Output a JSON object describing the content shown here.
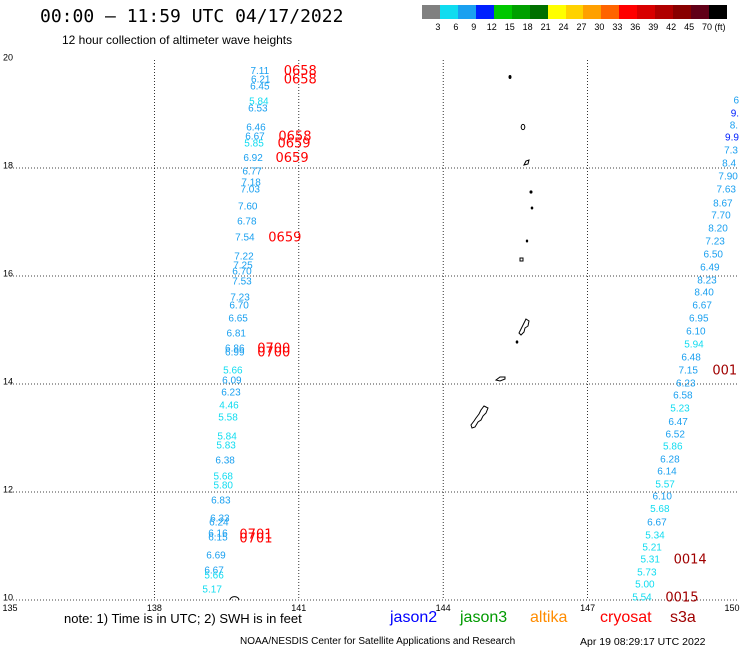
{
  "header": {
    "title": "00:00 – 11:59 UTC 04/17/2022",
    "subtitle": "12 hour collection of altimeter wave heights"
  },
  "legend": {
    "bins": [
      "#808080",
      "#10dcf0",
      "#1aa0f0",
      "#0020ff",
      "#00c800",
      "#00a000",
      "#007000",
      "#ffff00",
      "#ffd200",
      "#ffa000",
      "#ff6400",
      "#ff0000",
      "#d80000",
      "#b00000",
      "#880000",
      "#600018",
      "#000000"
    ],
    "labels": [
      "3",
      "6",
      "9",
      "12",
      "15",
      "18",
      "21",
      "24",
      "27",
      "30",
      "33",
      "36",
      "39",
      "42",
      "45",
      "70"
    ],
    "unit": "(ft)"
  },
  "map": {
    "lon_range": [
      135,
      150
    ],
    "lat_range": [
      10,
      20
    ],
    "grid": true,
    "x_ticks": [
      "135",
      "138",
      "141",
      "144",
      "147",
      "150"
    ],
    "y_ticks": [
      "20",
      "18",
      "16",
      "14",
      "12",
      "10"
    ],
    "observations": [
      {
        "value": "7.11",
        "lat": 19.81,
        "lon": 140.19
      },
      {
        "value": "6.21",
        "lat": 19.65,
        "lon": 140.21
      },
      {
        "value": "6.45",
        "lat": 19.52,
        "lon": 140.19
      },
      {
        "value": "5.84",
        "lat": 19.24,
        "lon": 140.17
      },
      {
        "value": "6.53",
        "lat": 19.11,
        "lon": 140.15
      },
      {
        "value": "6.46",
        "lat": 18.76,
        "lon": 140.11
      },
      {
        "value": "6.67",
        "lat": 18.59,
        "lon": 140.09
      },
      {
        "value": "5.85",
        "lat": 18.46,
        "lon": 140.07
      },
      {
        "value": "6.92",
        "lat": 18.19,
        "lon": 140.05
      },
      {
        "value": "6.77",
        "lat": 17.94,
        "lon": 140.03
      },
      {
        "value": "7.18",
        "lat": 17.74,
        "lon": 140.01
      },
      {
        "value": "7.03",
        "lat": 17.61,
        "lon": 139.99
      },
      {
        "value": "7.60",
        "lat": 17.3,
        "lon": 139.94
      },
      {
        "value": "6.78",
        "lat": 17.02,
        "lon": 139.92
      },
      {
        "value": "7.54",
        "lat": 16.72,
        "lon": 139.88
      },
      {
        "value": "7.22",
        "lat": 16.37,
        "lon": 139.86
      },
      {
        "value": "7.25",
        "lat": 16.2,
        "lon": 139.84
      },
      {
        "value": "6.70",
        "lat": 16.09,
        "lon": 139.82
      },
      {
        "value": "7.53",
        "lat": 15.91,
        "lon": 139.82
      },
      {
        "value": "7.23",
        "lat": 15.61,
        "lon": 139.78
      },
      {
        "value": "6.70",
        "lat": 15.46,
        "lon": 139.76
      },
      {
        "value": "6.65",
        "lat": 15.22,
        "lon": 139.74
      },
      {
        "value": "6.81",
        "lat": 14.94,
        "lon": 139.7
      },
      {
        "value": "6.86",
        "lat": 14.67,
        "lon": 139.67
      },
      {
        "value": "6.99",
        "lat": 14.59,
        "lon": 139.67
      },
      {
        "value": "5.66",
        "lat": 14.26,
        "lon": 139.63
      },
      {
        "value": "6.09",
        "lat": 14.07,
        "lon": 139.61
      },
      {
        "value": "6.23",
        "lat": 13.85,
        "lon": 139.59
      },
      {
        "value": "4.46",
        "lat": 13.61,
        "lon": 139.55
      },
      {
        "value": "5.58",
        "lat": 13.39,
        "lon": 139.53
      },
      {
        "value": "5.84",
        "lat": 13.04,
        "lon": 139.51
      },
      {
        "value": "5.83",
        "lat": 12.87,
        "lon": 139.49
      },
      {
        "value": "6.38",
        "lat": 12.59,
        "lon": 139.47
      },
      {
        "value": "5.68",
        "lat": 12.3,
        "lon": 139.43
      },
      {
        "value": "5.80",
        "lat": 12.13,
        "lon": 139.43
      },
      {
        "value": "6.83",
        "lat": 11.85,
        "lon": 139.38
      },
      {
        "value": "6.33",
        "lat": 11.52,
        "lon": 139.36
      },
      {
        "value": "6.24",
        "lat": 11.44,
        "lon": 139.34
      },
      {
        "value": "6.16",
        "lat": 11.24,
        "lon": 139.32
      },
      {
        "value": "6.15",
        "lat": 11.17,
        "lon": 139.32
      },
      {
        "value": "6.69",
        "lat": 10.83,
        "lon": 139.28
      },
      {
        "value": "6.67",
        "lat": 10.56,
        "lon": 139.24
      },
      {
        "value": "5.66",
        "lat": 10.46,
        "lon": 139.24
      },
      {
        "value": "5.17",
        "lat": 10.2,
        "lon": 139.2
      },
      {
        "value": "6",
        "lat": 19.26,
        "lon": 150.09
      },
      {
        "value": "9.",
        "lat": 19.02,
        "lon": 150.06
      },
      {
        "value": "8.",
        "lat": 18.8,
        "lon": 150.04
      },
      {
        "value": "9.9",
        "lat": 18.57,
        "lon": 150.0
      },
      {
        "value": "7.3",
        "lat": 18.33,
        "lon": 149.98
      },
      {
        "value": "8.4",
        "lat": 18.09,
        "lon": 149.94
      },
      {
        "value": "7.90",
        "lat": 17.85,
        "lon": 149.92
      },
      {
        "value": "7.63",
        "lat": 17.61,
        "lon": 149.88
      },
      {
        "value": "8.67",
        "lat": 17.35,
        "lon": 149.81
      },
      {
        "value": "7.70",
        "lat": 17.13,
        "lon": 149.77
      },
      {
        "value": "8.20",
        "lat": 16.89,
        "lon": 149.71
      },
      {
        "value": "7.23",
        "lat": 16.65,
        "lon": 149.65
      },
      {
        "value": "6.50",
        "lat": 16.41,
        "lon": 149.61
      },
      {
        "value": "6.49",
        "lat": 16.17,
        "lon": 149.54
      },
      {
        "value": "8.23",
        "lat": 15.93,
        "lon": 149.48
      },
      {
        "value": "8.40",
        "lat": 15.7,
        "lon": 149.42
      },
      {
        "value": "6.67",
        "lat": 15.46,
        "lon": 149.38
      },
      {
        "value": "6.95",
        "lat": 15.22,
        "lon": 149.31
      },
      {
        "value": "6.10",
        "lat": 14.98,
        "lon": 149.25
      },
      {
        "value": "5.94",
        "lat": 14.74,
        "lon": 149.21
      },
      {
        "value": "6.48",
        "lat": 14.5,
        "lon": 149.15
      },
      {
        "value": "7.15",
        "lat": 14.26,
        "lon": 149.09
      },
      {
        "value": "6.23",
        "lat": 14.02,
        "lon": 149.04
      },
      {
        "value": "6.58",
        "lat": 13.8,
        "lon": 148.98
      },
      {
        "value": "5.23",
        "lat": 13.56,
        "lon": 148.92
      },
      {
        "value": "6.47",
        "lat": 13.31,
        "lon": 148.88
      },
      {
        "value": "6.52",
        "lat": 13.07,
        "lon": 148.82
      },
      {
        "value": "5.86",
        "lat": 12.85,
        "lon": 148.77
      },
      {
        "value": "6.28",
        "lat": 12.61,
        "lon": 148.71
      },
      {
        "value": "6.14",
        "lat": 12.39,
        "lon": 148.65
      },
      {
        "value": "5.57",
        "lat": 12.15,
        "lon": 148.61
      },
      {
        "value": "6.10",
        "lat": 11.93,
        "lon": 148.55
      },
      {
        "value": "5.68",
        "lat": 11.69,
        "lon": 148.5
      },
      {
        "value": "6.67",
        "lat": 11.44,
        "lon": 148.44
      },
      {
        "value": "5.34",
        "lat": 11.2,
        "lon": 148.4
      },
      {
        "value": "5.21",
        "lat": 10.98,
        "lon": 148.34
      },
      {
        "value": "5.31",
        "lat": 10.76,
        "lon": 148.3
      },
      {
        "value": "5.73",
        "lat": 10.52,
        "lon": 148.23
      },
      {
        "value": "5.00",
        "lat": 10.3,
        "lon": 148.19
      },
      {
        "value": "5.54",
        "lat": 10.06,
        "lon": 148.13
      }
    ],
    "times": [
      {
        "text": "0658",
        "satellite": "cryosat",
        "lat": 19.81,
        "lon": 141.03
      },
      {
        "text": "0658",
        "satellite": "cryosat",
        "lat": 19.65,
        "lon": 141.03
      },
      {
        "text": "0658",
        "satellite": "cryosat",
        "lat": 18.59,
        "lon": 140.92
      },
      {
        "text": "0659",
        "satellite": "cryosat",
        "lat": 18.46,
        "lon": 140.9
      },
      {
        "text": "0659",
        "satellite": "cryosat",
        "lat": 18.19,
        "lon": 140.86
      },
      {
        "text": "0659",
        "satellite": "cryosat",
        "lat": 16.72,
        "lon": 140.71
      },
      {
        "text": "0700",
        "satellite": "cryosat",
        "lat": 14.67,
        "lon": 140.48
      },
      {
        "text": "0700",
        "satellite": "cryosat",
        "lat": 14.59,
        "lon": 140.48
      },
      {
        "text": "0701",
        "satellite": "cryosat",
        "lat": 11.22,
        "lon": 140.11
      },
      {
        "text": "0701",
        "satellite": "cryosat",
        "lat": 11.15,
        "lon": 140.11
      },
      {
        "text": "001",
        "satellite": "s3a",
        "lat": 14.26,
        "lon": 149.85
      },
      {
        "text": "0014",
        "satellite": "s3a",
        "lat": 10.76,
        "lon": 149.13
      },
      {
        "text": "0015",
        "satellite": "s3a",
        "lat": 10.06,
        "lon": 148.96
      }
    ]
  },
  "footer": {
    "note": "note: 1) Time is in UTC; 2) SWH is in feet",
    "satellites": [
      {
        "name": "jason2",
        "color": "#0000ff"
      },
      {
        "name": "jason3",
        "color": "#009a00"
      },
      {
        "name": "altika",
        "color": "#ff8c00"
      },
      {
        "name": "cryosat",
        "color": "#ff0000"
      },
      {
        "name": "s3a",
        "color": "#a00000"
      }
    ],
    "credit": "NOAA/NESDIS Center for Satellite Applications and Research",
    "generated": "Apr 19 08:29:17 UTC 2022"
  }
}
